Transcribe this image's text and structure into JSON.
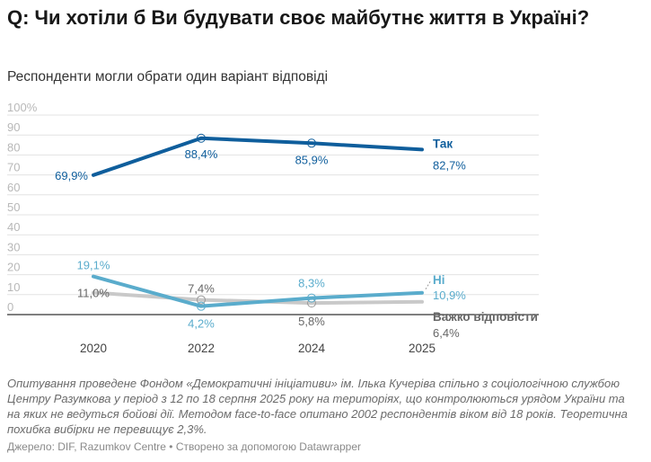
{
  "header": {
    "title": "Q: Чи хотіли б Ви будувати своє майбутнє життя в Україні?",
    "subtitle": "Респонденти могли обрати один варіант відповіді"
  },
  "footer": {
    "notes": "Опитування проведене Фондом «Демократичні ініціативи» ім. Ілька Кучеріва спільно з соціологічною службою Центру Разумкова у період з 12 по 18 серпня 2025 року на територіях, що контролюються урядом України та на яких не ведуться бойові дії. Методом face-to-face опитано 2002 респондентів віком від 18 років. Теоретична похибка вибірки не перевищує 2,3%.",
    "source": "Джерело: DIF, Razumkov Centre • Створено за допомогою Datawrapper"
  },
  "chart_data": {
    "type": "line",
    "title": "Q: Чи хотіли б Ви будувати своє майбутнє життя в Україні?",
    "subtitle": "Респонденти могли обрати один варіант відповіді",
    "x": [
      2020,
      2022,
      2024,
      2025
    ],
    "x_tick_labels": [
      "2020",
      "2022",
      "2024",
      "2025"
    ],
    "y_tick_labels": [
      "100%",
      "90",
      "80",
      "70",
      "60",
      "50",
      "40",
      "30",
      "20",
      "10",
      "0"
    ],
    "y_ticks": [
      100,
      90,
      80,
      70,
      60,
      50,
      40,
      30,
      20,
      10,
      0
    ],
    "ylim": [
      0,
      100
    ],
    "xlim": [
      2020,
      2025
    ],
    "grid": true,
    "series": [
      {
        "name": "Так",
        "color": "#0f5e9c",
        "values": [
          69.9,
          88.4,
          85.9,
          82.7
        ],
        "labels": [
          "69,9%",
          "88,4%",
          "85,9%",
          "82,7%"
        ]
      },
      {
        "name": "Ні",
        "color": "#5aaccc",
        "values": [
          19.1,
          4.2,
          8.3,
          10.9
        ],
        "labels": [
          "19,1%",
          "4,2%",
          "8,3%",
          "10,9%"
        ]
      },
      {
        "name": "Важко відповісти",
        "color": "#c9c9c9",
        "values": [
          11.0,
          7.4,
          5.8,
          6.4
        ],
        "labels": [
          "11,0%",
          "7,4%",
          "5,8%",
          "6,4%"
        ]
      }
    ]
  }
}
